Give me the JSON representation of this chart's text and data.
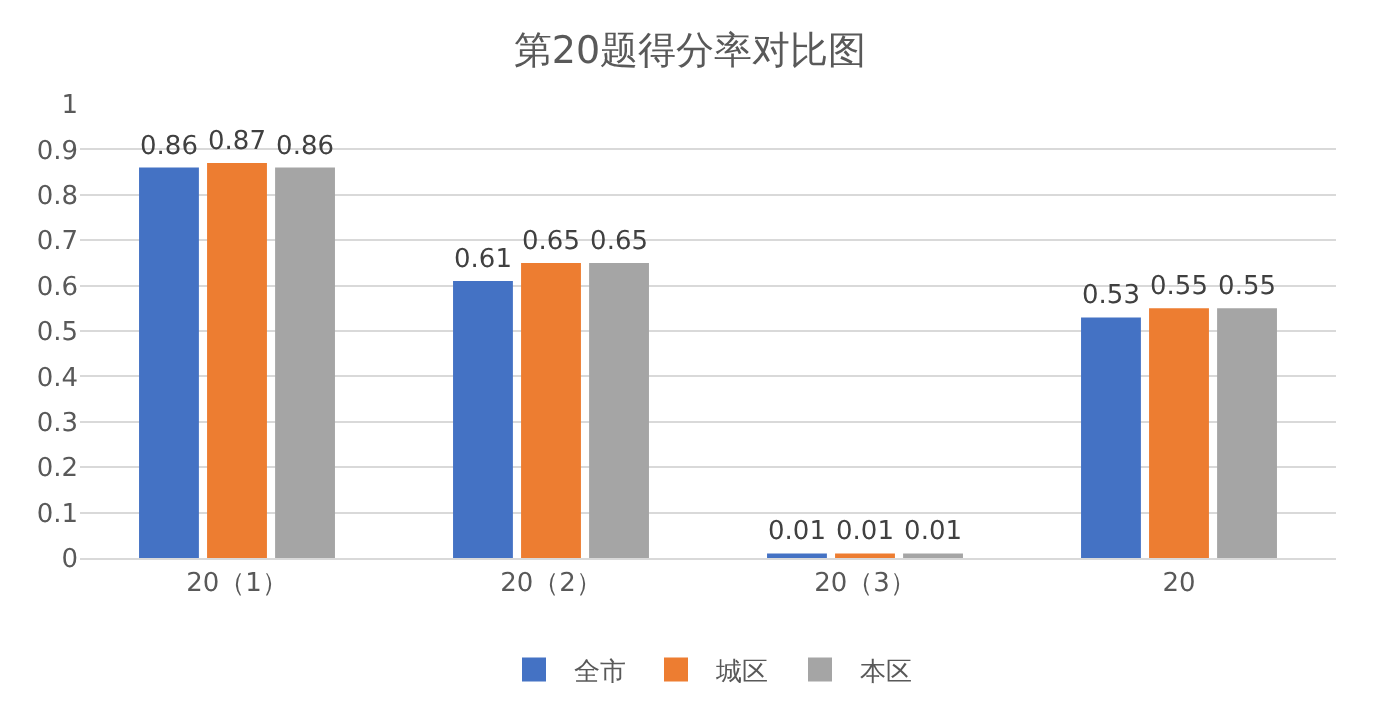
{
  "chart_data": {
    "type": "bar",
    "title": "第20题得分率对比图",
    "categories": [
      "20（1）",
      "20（2）",
      "20（3）",
      "20"
    ],
    "series": [
      {
        "name": "全市",
        "color": "#4472c4",
        "values": [
          0.86,
          0.61,
          0.01,
          0.53
        ]
      },
      {
        "name": "城区",
        "color": "#ed7d31",
        "values": [
          0.87,
          0.65,
          0.01,
          0.55
        ]
      },
      {
        "name": "本区",
        "color": "#a5a5a5",
        "values": [
          0.86,
          0.65,
          0.01,
          0.55
        ]
      }
    ],
    "ylim": [
      0,
      1
    ],
    "yticks": [
      0,
      0.1,
      0.2,
      0.3,
      0.4,
      0.5,
      0.6,
      0.7,
      0.8,
      0.9,
      1
    ],
    "grid": "y",
    "legend": "bottom",
    "data_labels": true
  }
}
